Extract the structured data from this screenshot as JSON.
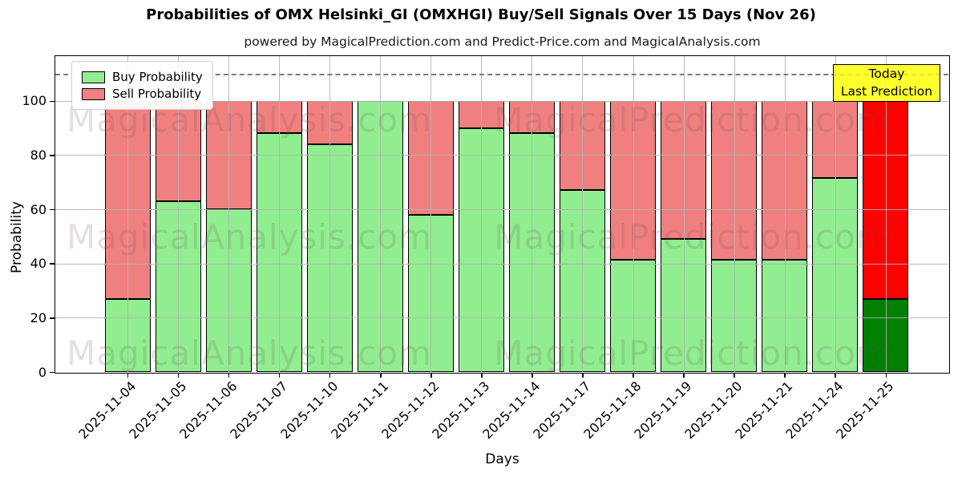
{
  "chart_data": {
    "type": "bar",
    "stacked": true,
    "title": "Probabilities of OMX Helsinki_GI (OMXHGI) Buy/Sell Signals Over 15 Days (Nov 26)",
    "subtitle": "powered by MagicalPrediction.com and Predict-Price.com and MagicalAnalysis.com",
    "xlabel": "Days",
    "ylabel": "Probability",
    "categories": [
      "2025-11-04",
      "2025-11-05",
      "2025-11-06",
      "2025-11-07",
      "2025-11-10",
      "2025-11-11",
      "2025-11-12",
      "2025-11-13",
      "2025-11-14",
      "2025-11-17",
      "2025-11-18",
      "2025-11-19",
      "2025-11-20",
      "2025-11-21",
      "2025-11-24",
      "2025-11-25"
    ],
    "series": [
      {
        "name": "Buy Probability",
        "color": "#90EE90",
        "values": [
          27,
          63,
          60,
          88,
          84,
          100,
          58,
          90,
          88,
          67,
          41.5,
          49,
          41.5,
          41.5,
          71.5,
          27
        ]
      },
      {
        "name": "Sell Probability",
        "color": "#F08080",
        "values": [
          73,
          37,
          40,
          12,
          16,
          0,
          42,
          10,
          12,
          33,
          58.5,
          51,
          58.5,
          58.5,
          28.5,
          73
        ]
      }
    ],
    "today_highlight": {
      "category": "2025-11-25",
      "index": 15,
      "buy_color": "#008000",
      "sell_color": "#FF0000"
    },
    "yticks": [
      0,
      20,
      40,
      60,
      80,
      100
    ],
    "ylim": [
      0,
      116.5
    ],
    "dashed_line_y": 110,
    "grid": true,
    "legend_position": "upper-left"
  },
  "annotation_box": {
    "lines": [
      "Today",
      "Last Prediction"
    ],
    "bg_color": "#FFFF00"
  },
  "watermarks": {
    "left_text": "MagicalAnalysis.com",
    "right_text": "MagicalPrediction.com",
    "rows": 3
  }
}
